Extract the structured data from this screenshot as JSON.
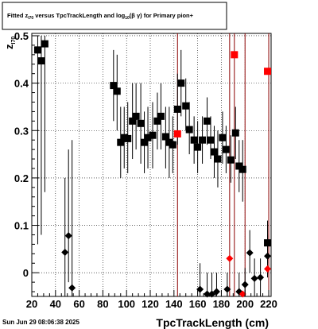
{
  "footer_timestamp": "Sun Jun 29 08:06:38 2025",
  "chart_data": {
    "type": "scatter",
    "title": "Fitted  z_{I70}  versus TpcTrackLength and log_{10}(β γ) for Primary pion+",
    "title_parts": {
      "t1": "Fitted  z",
      "t1_sub": "I70",
      "t2": "  versus TpcTrackLength and log",
      "t2_sub": "10",
      "t3": "(β   γ) for Primary pion+"
    },
    "xlabel": "TpcTrackLength (cm)",
    "ylabel": "z",
    "ylabel_sub": "I70",
    "xlim": [
      20,
      222
    ],
    "ylim": [
      -0.05,
      0.505
    ],
    "x_ticks": [
      20,
      40,
      60,
      80,
      100,
      120,
      140,
      160,
      180,
      200,
      220
    ],
    "y_ticks": [
      0,
      0.1,
      0.2,
      0.3,
      0.4,
      0.5
    ],
    "y_tick_labels": [
      "0",
      "0.1",
      "0.2",
      "0.3",
      "0.4",
      "0.5"
    ],
    "grid": true,
    "colors": {
      "black": "#000000",
      "red": "#ff0000",
      "dark_red": "#8b0000"
    },
    "vertical_lines": [
      143,
      187,
      191,
      200,
      220
    ],
    "series": [
      {
        "marker": "square",
        "color": "#000000",
        "points": [
          {
            "x": 25,
            "y": 0.47,
            "ylo": 0.06,
            "yhi": 0.5
          },
          {
            "x": 28,
            "y": 0.447,
            "ylo": 0.08,
            "yhi": 0.5
          },
          {
            "x": 31,
            "y": 0.483,
            "ylo": 0.17,
            "yhi": 0.5
          },
          {
            "x": 89,
            "y": 0.395,
            "ylo": 0.32,
            "yhi": 0.47
          },
          {
            "x": 92,
            "y": 0.383,
            "ylo": 0.3,
            "yhi": 0.46
          },
          {
            "x": 95,
            "y": 0.275,
            "ylo": 0.2,
            "yhi": 0.35
          },
          {
            "x": 98,
            "y": 0.285,
            "ylo": 0.22,
            "yhi": 0.35
          },
          {
            "x": 101,
            "y": 0.283,
            "ylo": 0.21,
            "yhi": 0.36
          },
          {
            "x": 105,
            "y": 0.32,
            "ylo": 0.24,
            "yhi": 0.4
          },
          {
            "x": 108,
            "y": 0.33,
            "ylo": 0.26,
            "yhi": 0.4
          },
          {
            "x": 112,
            "y": 0.315,
            "ylo": 0.23,
            "yhi": 0.4
          },
          {
            "x": 115,
            "y": 0.275,
            "ylo": 0.21,
            "yhi": 0.34
          },
          {
            "x": 118,
            "y": 0.285,
            "ylo": 0.22,
            "yhi": 0.35
          },
          {
            "x": 122,
            "y": 0.29,
            "ylo": 0.22,
            "yhi": 0.36
          },
          {
            "x": 126,
            "y": 0.32,
            "ylo": 0.26,
            "yhi": 0.38
          },
          {
            "x": 129,
            "y": 0.33,
            "ylo": 0.26,
            "yhi": 0.4
          },
          {
            "x": 133,
            "y": 0.287,
            "ylo": 0.22,
            "yhi": 0.35
          },
          {
            "x": 136,
            "y": 0.275,
            "ylo": 0.2,
            "yhi": 0.35
          },
          {
            "x": 139,
            "y": 0.27,
            "ylo": 0.21,
            "yhi": 0.33
          },
          {
            "x": 143,
            "y": 0.345,
            "ylo": 0.27,
            "yhi": 0.42
          },
          {
            "x": 146,
            "y": 0.4,
            "ylo": 0.33,
            "yhi": 0.47
          },
          {
            "x": 150,
            "y": 0.352,
            "ylo": 0.3,
            "yhi": 0.41
          },
          {
            "x": 153,
            "y": 0.302,
            "ylo": 0.25,
            "yhi": 0.36
          },
          {
            "x": 157,
            "y": 0.28,
            "ylo": 0.23,
            "yhi": 0.33
          },
          {
            "x": 160,
            "y": 0.265,
            "ylo": 0.21,
            "yhi": 0.32
          },
          {
            "x": 164,
            "y": 0.28,
            "ylo": 0.23,
            "yhi": 0.33
          },
          {
            "x": 168,
            "y": 0.32,
            "ylo": 0.27,
            "yhi": 0.37
          },
          {
            "x": 171,
            "y": 0.28,
            "ylo": 0.24,
            "yhi": 0.33
          },
          {
            "x": 174,
            "y": 0.255,
            "ylo": 0.2,
            "yhi": 0.31
          },
          {
            "x": 177,
            "y": 0.24,
            "ylo": 0.18,
            "yhi": 0.3
          },
          {
            "x": 181,
            "y": 0.285,
            "ylo": 0.23,
            "yhi": 0.34
          },
          {
            "x": 184,
            "y": 0.26,
            "ylo": 0.21,
            "yhi": 0.31
          },
          {
            "x": 188,
            "y": 0.238,
            "ylo": 0.19,
            "yhi": 0.29
          },
          {
            "x": 192,
            "y": 0.295,
            "ylo": 0.24,
            "yhi": 0.35
          },
          {
            "x": 195,
            "y": 0.225,
            "ylo": 0.17,
            "yhi": 0.28
          },
          {
            "x": 198,
            "y": 0.218,
            "ylo": 0.15,
            "yhi": 0.28
          },
          {
            "x": 219,
            "y": 0.063,
            "ylo": 0.02,
            "yhi": 0.11
          }
        ]
      },
      {
        "marker": "square",
        "color": "#ff0000",
        "points": [
          {
            "x": 143,
            "y": 0.293
          },
          {
            "x": 191,
            "y": 0.46
          },
          {
            "x": 219,
            "y": 0.425
          }
        ]
      },
      {
        "marker": "diamond",
        "color": "#000000",
        "points": [
          {
            "x": 48,
            "y": 0.043,
            "ylo": -0.05,
            "yhi": 0.2
          },
          {
            "x": 51,
            "y": 0.078,
            "ylo": -0.02,
            "yhi": 0.26
          },
          {
            "x": 54,
            "y": -0.032,
            "ylo": -0.05,
            "yhi": 0.28
          },
          {
            "x": 162,
            "y": -0.035,
            "ylo": -0.05,
            "yhi": 0.02
          },
          {
            "x": 168,
            "y": -0.045,
            "ylo": -0.05,
            "yhi": 0.0
          },
          {
            "x": 172,
            "y": -0.045,
            "ylo": -0.05,
            "yhi": 0.0
          },
          {
            "x": 176,
            "y": -0.04,
            "ylo": -0.05,
            "yhi": 0.0
          },
          {
            "x": 185,
            "y": -0.035,
            "ylo": -0.05,
            "yhi": 0.0
          },
          {
            "x": 195,
            "y": -0.04,
            "ylo": -0.05,
            "yhi": 0.0
          },
          {
            "x": 200,
            "y": -0.025,
            "ylo": -0.05,
            "yhi": 0.01
          },
          {
            "x": 204,
            "y": 0.042,
            "ylo": 0.0,
            "yhi": 0.09
          },
          {
            "x": 208,
            "y": -0.012,
            "ylo": -0.05,
            "yhi": 0.03
          },
          {
            "x": 213,
            "y": -0.01,
            "ylo": -0.05,
            "yhi": 0.03
          },
          {
            "x": 219,
            "y": 0.035,
            "ylo": -0.01,
            "yhi": 0.08
          }
        ]
      },
      {
        "marker": "diamond",
        "color": "#ff0000",
        "points": [
          {
            "x": 187,
            "y": 0.03
          },
          {
            "x": 198,
            "y": -0.045
          },
          {
            "x": 219,
            "y": 0.008
          }
        ]
      }
    ]
  }
}
